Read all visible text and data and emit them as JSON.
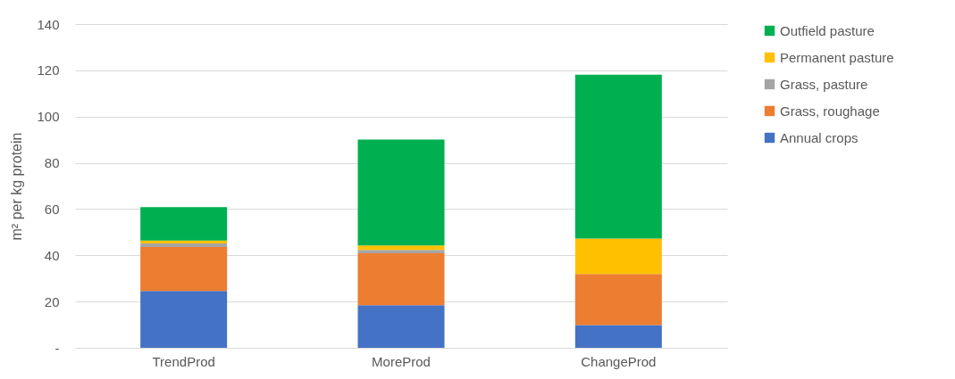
{
  "chart_data": {
    "type": "bar",
    "stacked": true,
    "ylabel": "m² per kg protein",
    "categories": [
      "TrendProd",
      "MoreProd",
      "ChangeProd"
    ],
    "series": [
      {
        "name": "Annual crops",
        "color": "#4472c4",
        "values": [
          24.6,
          18.4,
          9.8
        ]
      },
      {
        "name": "Grass, roughage",
        "color": "#ed7d31",
        "values": [
          19.0,
          22.5,
          22.1
        ]
      },
      {
        "name": "Grass, pasture",
        "color": "#a5a5a5",
        "values": [
          1.5,
          1.4,
          0
        ]
      },
      {
        "name": "Permanent pasture",
        "color": "#ffc000",
        "values": [
          1.3,
          2.0,
          15.3
        ]
      },
      {
        "name": "Outfield pasture",
        "color": "#00b050",
        "values": [
          14.4,
          45.8,
          70.9
        ]
      }
    ],
    "ylim": [
      0,
      140
    ],
    "yticks": [
      {
        "value": 0,
        "label": "-"
      },
      20,
      40,
      60,
      80,
      100,
      120,
      140
    ],
    "grid": "y",
    "legend": "right"
  }
}
